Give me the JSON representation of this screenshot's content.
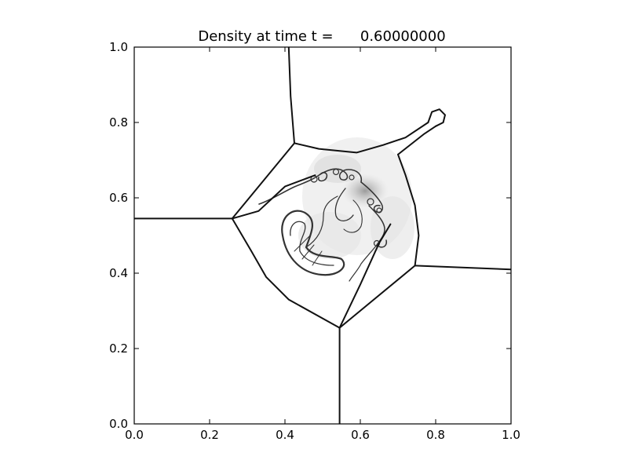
{
  "chart_data": {
    "type": "heatmap",
    "title": "Density at time t =      0.60000000",
    "xlabel": "",
    "ylabel": "",
    "xlim": [
      0.0,
      1.0
    ],
    "ylim": [
      0.0,
      1.0
    ],
    "x_ticks": [
      "0.0",
      "0.2",
      "0.4",
      "0.6",
      "0.8",
      "1.0"
    ],
    "y_ticks": [
      "0.0",
      "0.2",
      "0.4",
      "0.6",
      "0.8",
      "1.0"
    ],
    "grid": false,
    "colormap": "grayscale",
    "colors": {
      "background": "#ffffff",
      "ink": "#111111"
    },
    "shock_lines": [
      {
        "name": "top-shock",
        "points": [
          [
            0.41,
            1.0
          ],
          [
            0.415,
            0.87
          ],
          [
            0.425,
            0.745
          ]
        ]
      },
      {
        "name": "left-shock",
        "points": [
          [
            0.0,
            0.545
          ],
          [
            0.26,
            0.545
          ]
        ]
      },
      {
        "name": "bottom-shock",
        "points": [
          [
            0.545,
            0.0
          ],
          [
            0.545,
            0.255
          ]
        ]
      },
      {
        "name": "right-shock",
        "points": [
          [
            0.745,
            0.42
          ],
          [
            1.0,
            0.41
          ]
        ]
      },
      {
        "name": "upper-left-edge",
        "points": [
          [
            0.26,
            0.545
          ],
          [
            0.425,
            0.745
          ]
        ]
      },
      {
        "name": "lower-left-edge",
        "points": [
          [
            0.26,
            0.545
          ],
          [
            0.31,
            0.46
          ],
          [
            0.35,
            0.39
          ],
          [
            0.41,
            0.33
          ],
          [
            0.545,
            0.255
          ]
        ]
      },
      {
        "name": "lower-right-edge",
        "points": [
          [
            0.545,
            0.255
          ],
          [
            0.745,
            0.42
          ]
        ]
      },
      {
        "name": "inner-upper-left-edge",
        "points": [
          [
            0.26,
            0.545
          ],
          [
            0.33,
            0.565
          ],
          [
            0.4,
            0.63
          ],
          [
            0.48,
            0.66
          ]
        ]
      },
      {
        "name": "inner-lower-right-edge",
        "points": [
          [
            0.545,
            0.255
          ],
          [
            0.6,
            0.37
          ],
          [
            0.65,
            0.48
          ],
          [
            0.68,
            0.53
          ]
        ]
      },
      {
        "name": "upper-bubble-edge",
        "points": [
          [
            0.425,
            0.745
          ],
          [
            0.49,
            0.73
          ],
          [
            0.59,
            0.72
          ],
          [
            0.66,
            0.74
          ],
          [
            0.72,
            0.76
          ],
          [
            0.78,
            0.8
          ]
        ]
      },
      {
        "name": "right-bubble-edge",
        "points": [
          [
            0.745,
            0.42
          ],
          [
            0.755,
            0.5
          ],
          [
            0.745,
            0.58
          ],
          [
            0.72,
            0.66
          ],
          [
            0.7,
            0.715
          ]
        ]
      },
      {
        "name": "jet-lower-edge",
        "points": [
          [
            0.7,
            0.715
          ],
          [
            0.77,
            0.77
          ],
          [
            0.8,
            0.79
          ]
        ]
      },
      {
        "name": "jet-tip",
        "points": [
          [
            0.8,
            0.79
          ],
          [
            0.82,
            0.8
          ],
          [
            0.825,
            0.82
          ],
          [
            0.81,
            0.835
          ],
          [
            0.79,
            0.828
          ],
          [
            0.78,
            0.8
          ]
        ]
      }
    ]
  }
}
